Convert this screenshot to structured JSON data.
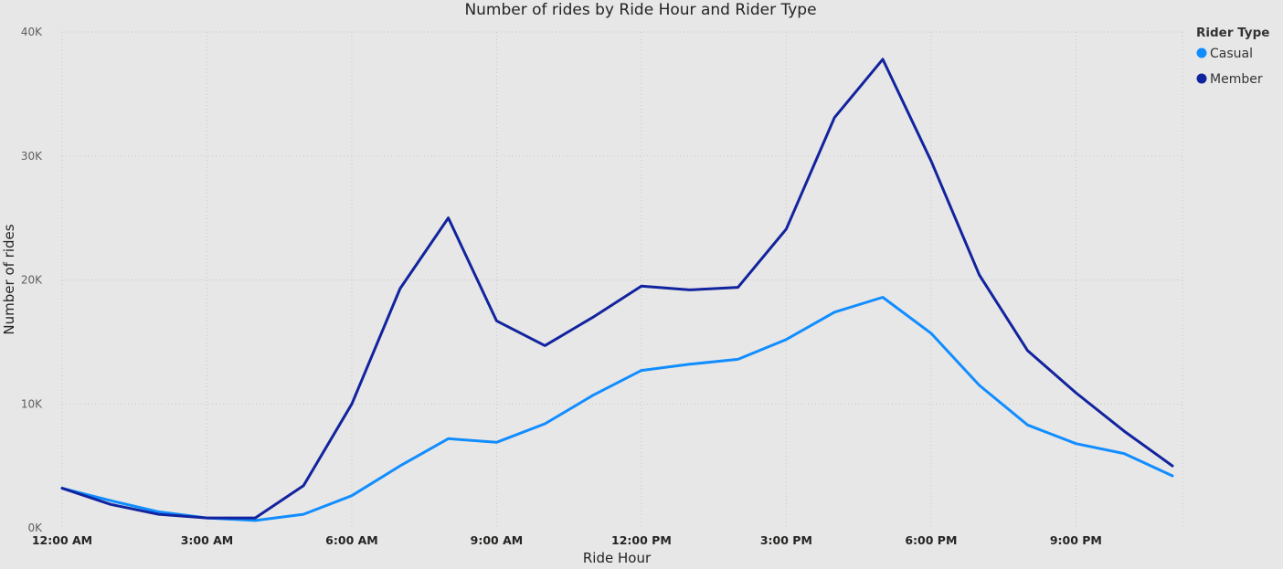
{
  "chart_data": {
    "type": "line",
    "title": "Number of rides by Ride Hour and Rider Type",
    "xlabel": "Ride Hour",
    "ylabel": "Number of rides",
    "x": [
      0,
      1,
      2,
      3,
      4,
      5,
      6,
      7,
      8,
      9,
      10,
      11,
      12,
      13,
      14,
      15,
      16,
      17,
      18,
      19,
      20,
      21,
      22,
      23
    ],
    "x_tick_labels": [
      "12:00 AM",
      "3:00 AM",
      "6:00 AM",
      "9:00 AM",
      "12:00 PM",
      "3:00 PM",
      "6:00 PM",
      "9:00 PM"
    ],
    "x_tick_values": [
      0,
      3,
      6,
      9,
      12,
      15,
      18,
      21
    ],
    "xlim": [
      0,
      23
    ],
    "ylim": [
      0,
      40000
    ],
    "y_ticks": [
      0,
      10000,
      20000,
      30000,
      40000
    ],
    "y_tick_labels": [
      "0K",
      "10K",
      "20K",
      "30K",
      "40K"
    ],
    "grid": true,
    "legend": {
      "title": "Rider Type",
      "position": "top-right"
    },
    "series": [
      {
        "name": "Casual",
        "color": "#118dff",
        "values": [
          3200,
          2200,
          1300,
          800,
          600,
          1100,
          2600,
          5000,
          7200,
          6900,
          8400,
          10700,
          12700,
          13200,
          13600,
          15200,
          17400,
          18600,
          15700,
          11500,
          8300,
          6800,
          6000,
          4200
        ]
      },
      {
        "name": "Member",
        "color": "#12239e",
        "values": [
          3200,
          1900,
          1100,
          800,
          800,
          3400,
          10000,
          19300,
          25000,
          16700,
          14700,
          17000,
          19500,
          19200,
          19400,
          24100,
          33100,
          37800,
          29600,
          20400,
          14300,
          10900,
          7800,
          5000
        ]
      }
    ]
  }
}
